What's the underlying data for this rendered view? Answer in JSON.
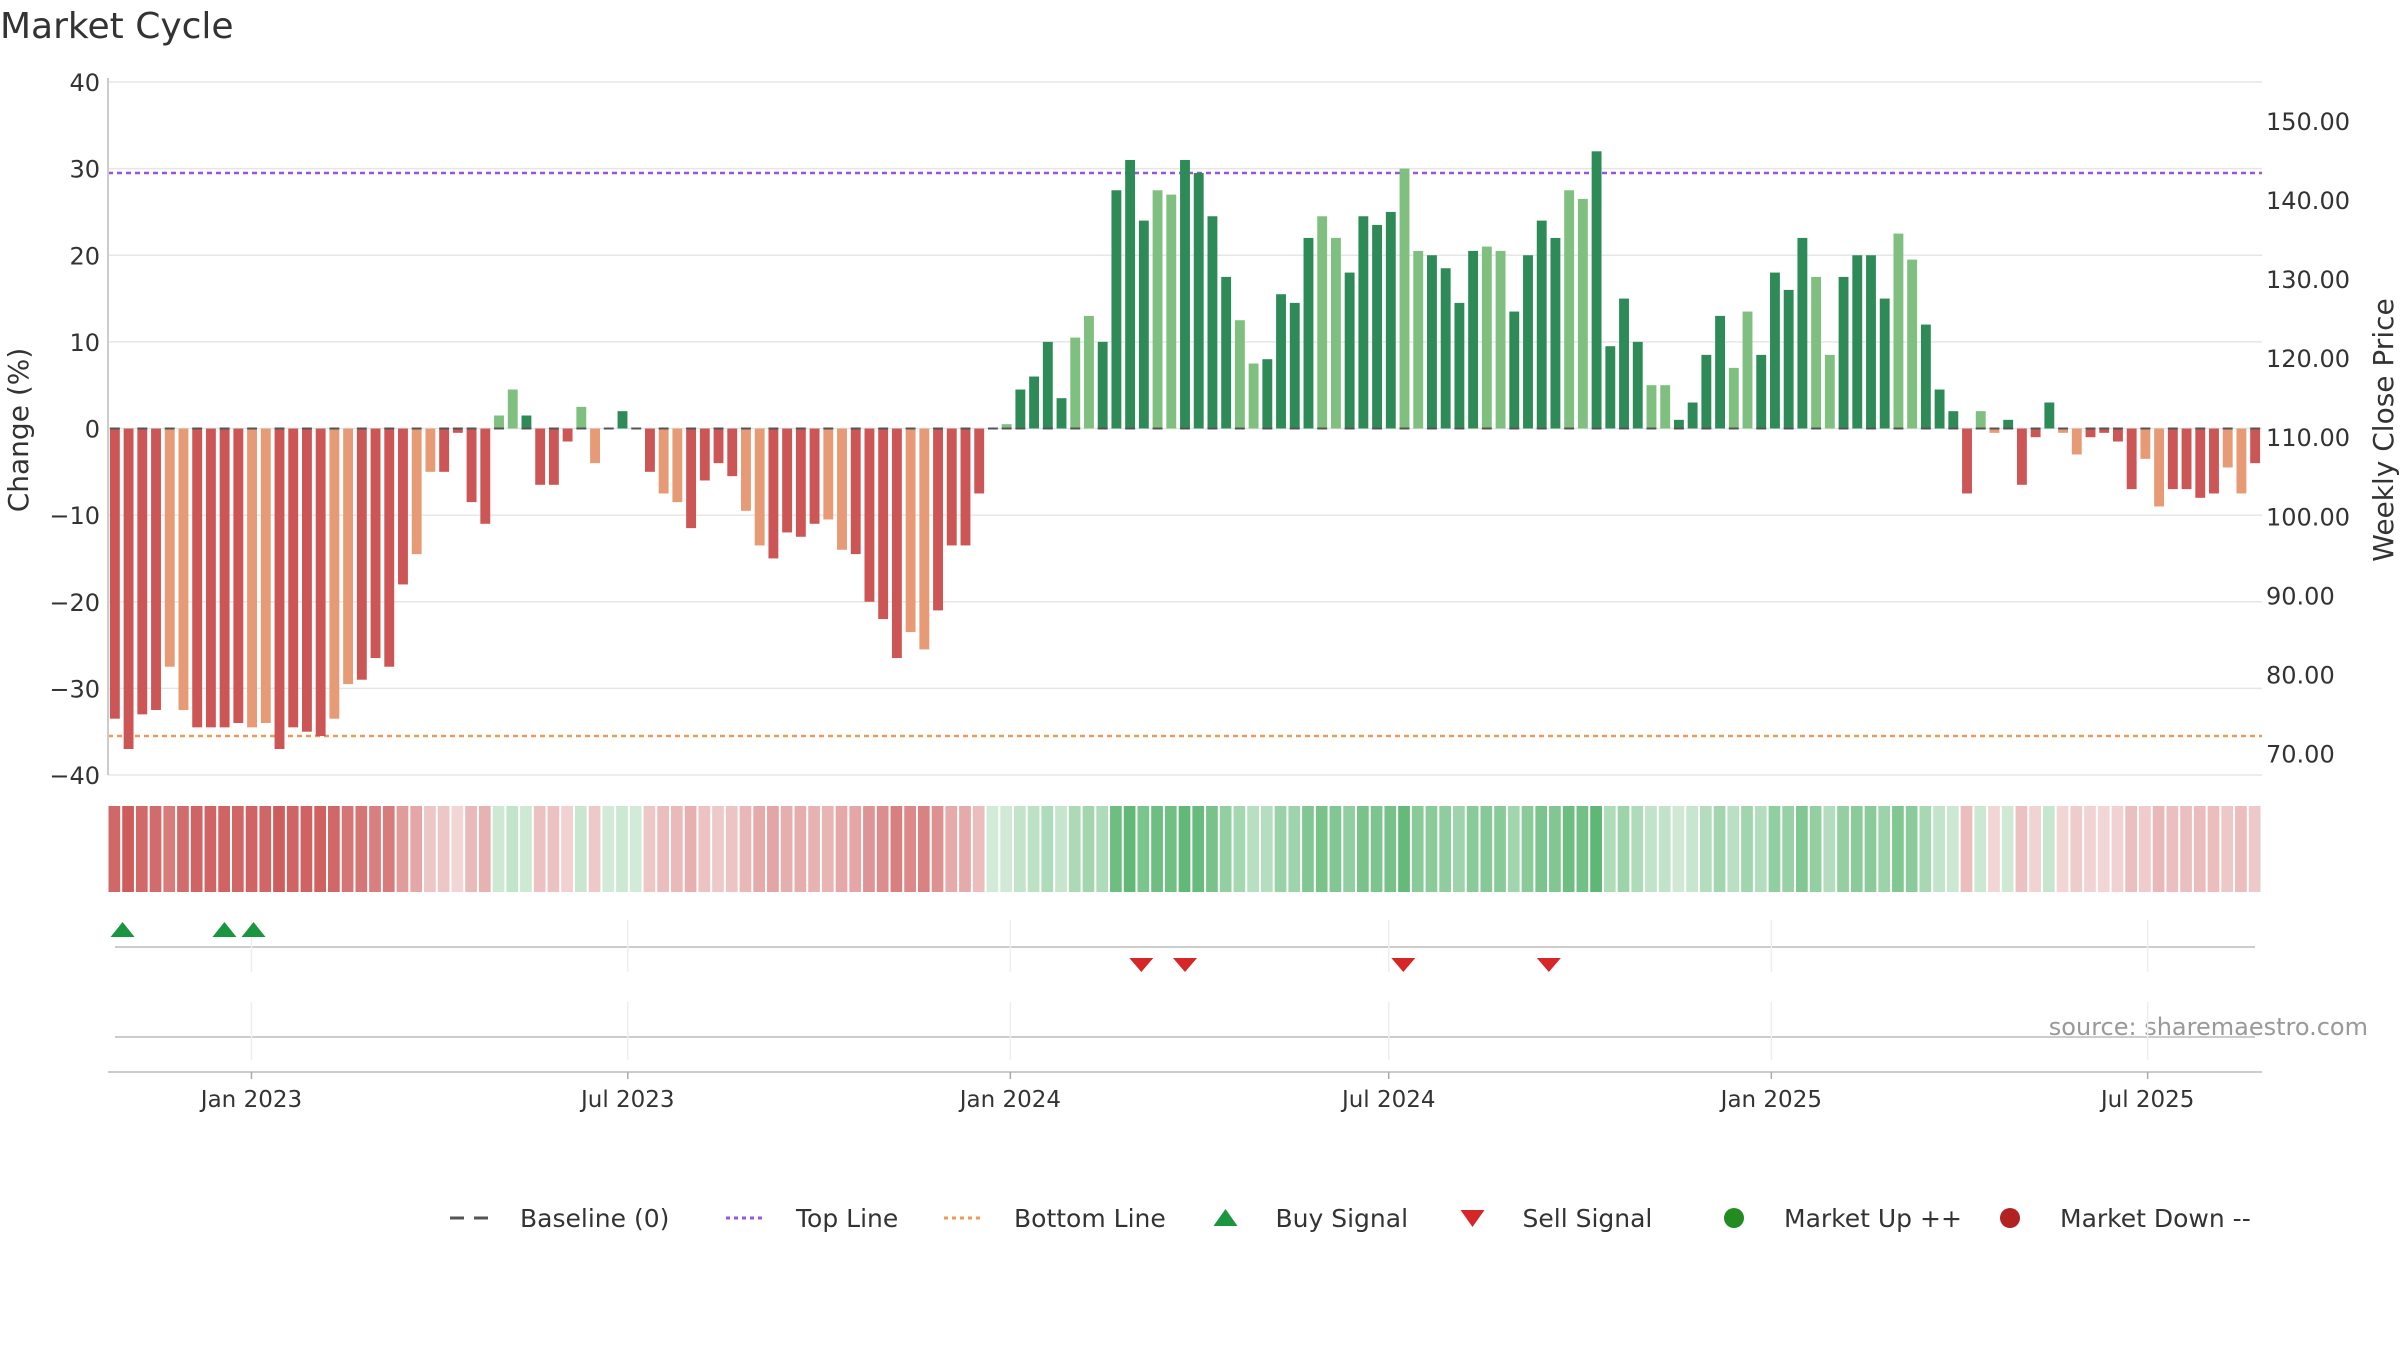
{
  "chart_data": {
    "type": "bar",
    "title": "Market Cycle",
    "ylabel": "Change (%)",
    "ylabel_right": "Weekly Close Price",
    "source": "source: sharemaestro.com",
    "ylim": [
      -40,
      40
    ],
    "y_ticks": [
      "40",
      "30",
      "20",
      "10",
      "0",
      "−10",
      "−20",
      "−30",
      "−40"
    ],
    "ylim_right": [
      67.3,
      154.9
    ],
    "y_ticks_right": [
      "150.00",
      "140.00",
      "130.00",
      "120.00",
      "110.00",
      "100.00",
      "90.00",
      "80.00",
      "70.00"
    ],
    "x_ticks": [
      "Jan 2023",
      "Jul 2023",
      "Jan 2024",
      "Jul 2024",
      "Jan 2025",
      "Jul 2025"
    ],
    "x_range": [
      "2022-10-24",
      "2025-08-25"
    ],
    "top_line": 29.5,
    "bottom_line": -35.5,
    "first_week": "2022-10-24",
    "values": [
      -33.5,
      -37,
      -33,
      -32.5,
      -27.5,
      -32.5,
      -34.5,
      -34.5,
      -34.5,
      -34,
      -34.5,
      -34,
      -37,
      -34.5,
      -35,
      -35.5,
      -33.5,
      -29.5,
      -29,
      -26.5,
      -27.5,
      -18,
      -14.5,
      -5,
      -5,
      -0.5,
      -8.5,
      -11,
      1.5,
      4.5,
      1.5,
      -6.5,
      -6.5,
      -1.5,
      2.5,
      -4,
      0,
      2,
      0,
      -5,
      -7.5,
      -8.5,
      -11.5,
      -6,
      -4,
      -5.5,
      -9.5,
      -13.5,
      -15,
      -12,
      -12.5,
      -11,
      -10.5,
      -14,
      -14.5,
      -20,
      -22,
      -26.5,
      -23.5,
      -25.5,
      -21,
      -13.5,
      -13.5,
      -7.5,
      0,
      0.5,
      4.5,
      6,
      10,
      3.5,
      10.5,
      13,
      10,
      27.5,
      31,
      24,
      27.5,
      27,
      31,
      29.5,
      24.5,
      17.5,
      12.5,
      7.5,
      8,
      15.5,
      14.5,
      22,
      24.5,
      22,
      18,
      24.5,
      23.5,
      25,
      30,
      20.5,
      20,
      18.5,
      14.5,
      20.5,
      21,
      20.5,
      13.5,
      20,
      24,
      22,
      27.5,
      26.5,
      32,
      9.5,
      15,
      10,
      5,
      5,
      1,
      3,
      8.5,
      13,
      7,
      13.5,
      8.5,
      18,
      16,
      22,
      17.5,
      8.5,
      17.5,
      20,
      20,
      15,
      22.5,
      19.5,
      12,
      4.5,
      2,
      -7.5,
      2,
      -0.5,
      1,
      -6.5,
      -1,
      3,
      -0.5,
      -3,
      -1,
      -0.5,
      -1.5,
      -7,
      -3.5,
      -9,
      -7,
      -7,
      -8,
      -7.5,
      -4.5,
      -7.5,
      -4
    ],
    "market_down_color": "#cc5555",
    "market_down_light_color": "#e69a76",
    "market_up_color": "#2e8b57",
    "market_up_light_color": "#7fbf7f",
    "buy_signal_dates": [
      "2022-10-31",
      "2022-12-19",
      "2023-01-02"
    ],
    "sell_signal_dates": [
      "2024-03-04",
      "2024-03-25",
      "2024-07-08",
      "2024-09-16"
    ],
    "buy_color": "#1a9641",
    "sell_color": "#d62728",
    "legend": {
      "placement": "bottom-center",
      "items": [
        {
          "key": "baseline",
          "label": "Baseline (0)",
          "color": "#555555"
        },
        {
          "key": "top",
          "label": "Top Line",
          "color": "#9955dd"
        },
        {
          "key": "bottom",
          "label": "Bottom Line",
          "color": "#ee9955"
        },
        {
          "key": "buy",
          "label": "Buy Signal",
          "color": "#1a9641"
        },
        {
          "key": "sell",
          "label": "Sell Signal",
          "color": "#d62728"
        },
        {
          "key": "up",
          "label": "Market Up ++",
          "color": "#228b22"
        },
        {
          "key": "down",
          "label": "Market Down --",
          "color": "#b22222"
        }
      ]
    }
  }
}
